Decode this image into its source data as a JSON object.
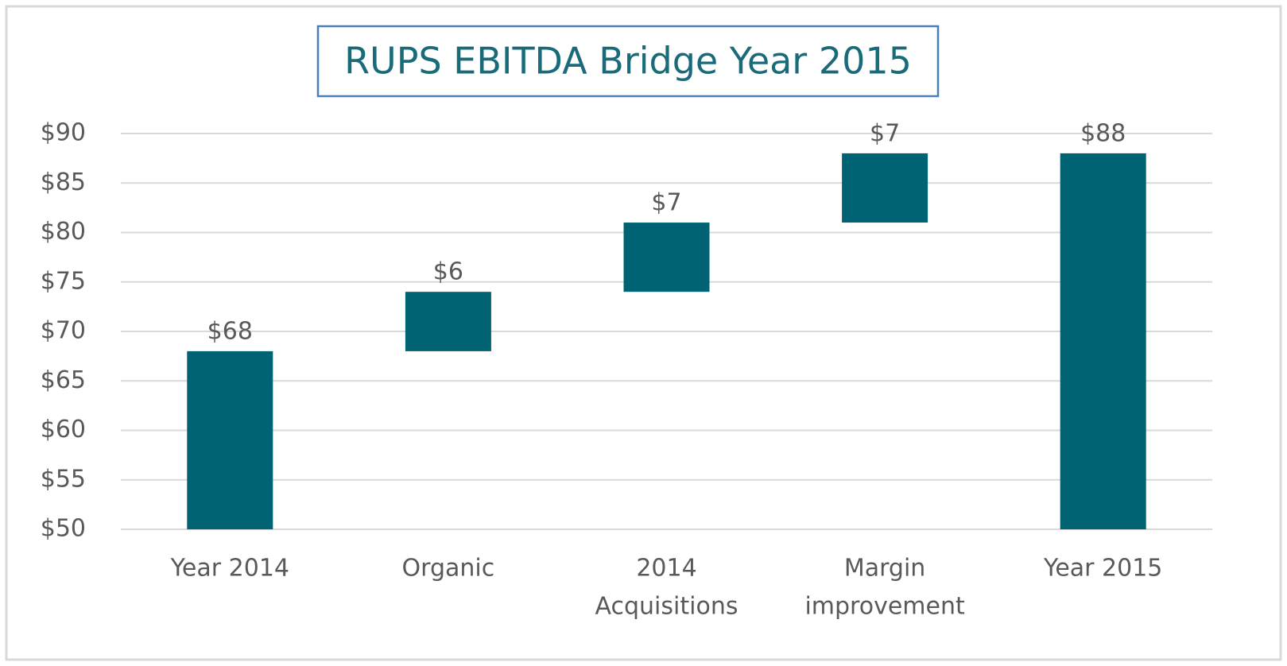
{
  "chart_data": {
    "type": "waterfall",
    "title": "RUPS EBITDA Bridge Year 2015",
    "categories": [
      [
        "Year 2014"
      ],
      [
        "Organic"
      ],
      [
        "2014",
        "Acquisitions"
      ],
      [
        "Margin",
        "improvement"
      ],
      [
        "Year 2015"
      ]
    ],
    "values": [
      68,
      6,
      7,
      7,
      88
    ],
    "value_labels": [
      "$68",
      "$6",
      "$7",
      "$7",
      "$88"
    ],
    "color": "#006373",
    "ylim": [
      50,
      90
    ],
    "yticks": [
      {
        "value": 50,
        "label": "$50"
      },
      {
        "value": 55,
        "label": "$55"
      },
      {
        "value": 60,
        "label": "$60"
      },
      {
        "value": 65,
        "label": "$65"
      },
      {
        "value": 70,
        "label": "$70"
      },
      {
        "value": 75,
        "label": "$75"
      },
      {
        "value": 80,
        "label": "$80"
      },
      {
        "value": 85,
        "label": "$85"
      },
      {
        "value": 90,
        "label": "$90"
      }
    ],
    "grid": true
  }
}
